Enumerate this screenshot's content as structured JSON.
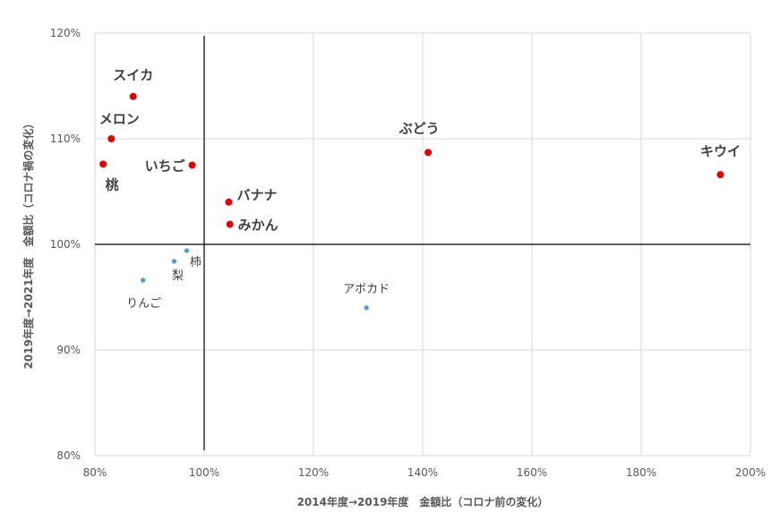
{
  "chart_data": {
    "type": "scatter",
    "title": "",
    "xlabel": "2014年度→2019年度　金額比（コロナ前の変化）",
    "ylabel": "2019年度→2021年度　金額比（コロナ禍の変化）",
    "xlim": [
      0.8,
      2.0
    ],
    "ylim": [
      0.8,
      1.2
    ],
    "x_ticks": [
      0.8,
      1.0,
      1.2,
      1.4,
      1.6,
      1.8,
      2.0
    ],
    "x_tick_labels": [
      "80%",
      "100%",
      "120%",
      "140%",
      "160%",
      "180%",
      "200%"
    ],
    "y_ticks": [
      0.8,
      0.9,
      1.0,
      1.1,
      1.2
    ],
    "y_tick_labels": [
      "80%",
      "90%",
      "100%",
      "110%",
      "120%"
    ],
    "grid": "vertical and horizontal major gridlines",
    "reference_lines": {
      "x": 1.0,
      "y": 1.0
    },
    "colors": {
      "increase": "#e00000",
      "decrease": "#5b9bd5",
      "grid": "#d9d9d9",
      "reference": "#000000"
    },
    "points": [
      {
        "name": "スイカ",
        "x": 0.87,
        "y": 1.14,
        "group": "increase"
      },
      {
        "name": "メロン",
        "x": 0.83,
        "y": 1.1,
        "group": "increase"
      },
      {
        "name": "桃",
        "x": 0.815,
        "y": 1.076,
        "group": "increase"
      },
      {
        "name": "いちご",
        "x": 0.978,
        "y": 1.075,
        "group": "increase"
      },
      {
        "name": "バナナ",
        "x": 1.045,
        "y": 1.04,
        "group": "increase"
      },
      {
        "name": "みかん",
        "x": 1.047,
        "y": 1.019,
        "group": "increase"
      },
      {
        "name": "ぶどう",
        "x": 1.41,
        "y": 1.087,
        "group": "increase"
      },
      {
        "name": "キウイ",
        "x": 1.945,
        "y": 1.066,
        "group": "increase"
      },
      {
        "name": "柿",
        "x": 0.968,
        "y": 0.994,
        "group": "decrease"
      },
      {
        "name": "梨",
        "x": 0.945,
        "y": 0.984,
        "group": "decrease"
      },
      {
        "name": "りんご",
        "x": 0.888,
        "y": 0.966,
        "group": "decrease"
      },
      {
        "name": "アボカド",
        "x": 1.297,
        "y": 0.94,
        "group": "decrease"
      }
    ]
  }
}
